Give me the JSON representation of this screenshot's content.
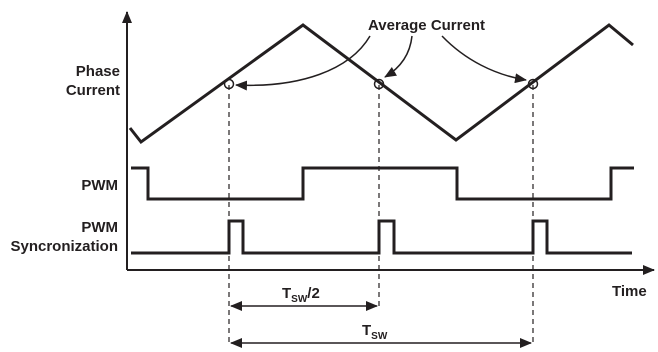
{
  "labels": {
    "average_current": "Average Current",
    "phase_current_line1": "Phase",
    "phase_current_line2": "Current",
    "pwm": "PWM",
    "pwm_sync_line1": "PWM",
    "pwm_sync_line2": "Syncronization",
    "time": "Time",
    "tsw_half_main": "T",
    "tsw_half_sub": "SW",
    "tsw_half_suffix": "/2",
    "tsw_main": "T",
    "tsw_sub": "SW"
  },
  "colors": {
    "ink": "#231f20",
    "background": "#ffffff"
  }
}
